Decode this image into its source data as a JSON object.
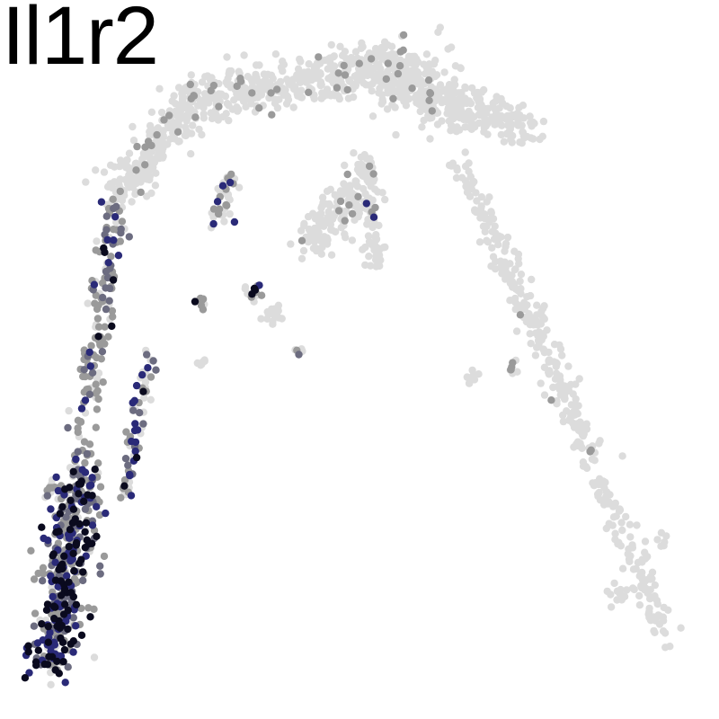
{
  "chart_data": {
    "type": "scatter",
    "title": "Il1r2",
    "xlabel": "",
    "ylabel": "",
    "grid": false,
    "legend": "none",
    "colors": {
      "none": "#dcdcdc",
      "low": "#9a9a9a",
      "mid": "#6c6c80",
      "high": "#2a2a78",
      "max": "#0a0a1e"
    },
    "segments": [
      {
        "name": "left-arm",
        "from": [
          -0.92,
          -0.92
        ],
        "to": [
          -0.72,
          0.5
        ],
        "n": 260,
        "spread": 0.018,
        "level_dist": [
          0.2,
          0.5,
          0.15,
          0.1,
          0.05
        ]
      },
      {
        "name": "left-base",
        "from": [
          -0.92,
          -0.92
        ],
        "to": [
          -0.82,
          -0.35
        ],
        "n": 320,
        "spread": 0.04,
        "level_dist": [
          0.05,
          0.3,
          0.2,
          0.25,
          0.2
        ]
      },
      {
        "name": "left-arm-upper",
        "from": [
          -0.72,
          0.5
        ],
        "to": [
          -0.5,
          0.78
        ],
        "n": 220,
        "spread": 0.03,
        "level_dist": [
          0.92,
          0.08,
          0,
          0,
          0
        ]
      },
      {
        "name": "top-ridge",
        "from": [
          -0.5,
          0.78
        ],
        "to": [
          0.05,
          0.88
        ],
        "n": 380,
        "spread": 0.035,
        "level_dist": [
          0.97,
          0.03,
          0,
          0,
          0
        ]
      },
      {
        "name": "top-peak",
        "from": [
          0.05,
          0.88
        ],
        "to": [
          0.25,
          0.78
        ],
        "n": 260,
        "spread": 0.05,
        "level_dist": [
          0.95,
          0.05,
          0,
          0,
          0
        ]
      },
      {
        "name": "right-branch",
        "from": [
          0.25,
          0.78
        ],
        "to": [
          0.5,
          0.7
        ],
        "n": 180,
        "spread": 0.03,
        "level_dist": [
          1,
          0,
          0,
          0,
          0
        ]
      },
      {
        "name": "right-arm",
        "from": [
          0.3,
          0.6
        ],
        "to": [
          0.92,
          -0.82
        ],
        "n": 380,
        "spread": 0.022,
        "level_dist": [
          0.98,
          0.02,
          0,
          0,
          0
        ]
      },
      {
        "name": "mid-branch",
        "from": [
          0.02,
          0.55
        ],
        "to": [
          -0.15,
          0.35
        ],
        "n": 140,
        "spread": 0.03,
        "level_dist": [
          0.95,
          0.05,
          0,
          0,
          0
        ]
      },
      {
        "name": "mid-stalk",
        "from": [
          0.02,
          0.6
        ],
        "to": [
          0.05,
          0.28
        ],
        "n": 70,
        "spread": 0.015,
        "level_dist": [
          0.9,
          0.05,
          0,
          0.05,
          0
        ]
      },
      {
        "name": "inner-stem",
        "from": [
          -0.38,
          0.55
        ],
        "to": [
          -0.42,
          0.42
        ],
        "n": 40,
        "spread": 0.015,
        "level_dist": [
          0.7,
          0.2,
          0,
          0.1,
          0
        ]
      },
      {
        "name": "left-inner-tail",
        "from": [
          -0.62,
          0.02
        ],
        "to": [
          -0.7,
          -0.4
        ],
        "n": 70,
        "spread": 0.012,
        "level_dist": [
          0.3,
          0.2,
          0.2,
          0.2,
          0.1
        ]
      }
    ],
    "clusters": [
      {
        "x": -0.32,
        "y": 0.2,
        "n": 14,
        "spread": 0.015,
        "level_dist": [
          0.6,
          0.2,
          0,
          0.1,
          0.1
        ]
      },
      {
        "x": -0.26,
        "y": 0.14,
        "n": 16,
        "spread": 0.015,
        "level_dist": [
          0.95,
          0.05,
          0,
          0,
          0
        ]
      },
      {
        "x": -0.47,
        "y": 0.18,
        "n": 8,
        "spread": 0.01,
        "level_dist": [
          0.5,
          0.2,
          0,
          0,
          0.3
        ]
      },
      {
        "x": -0.18,
        "y": 0.03,
        "n": 6,
        "spread": 0.008,
        "level_dist": [
          0.3,
          0.3,
          0.4,
          0,
          0
        ]
      },
      {
        "x": -0.47,
        "y": 0.0,
        "n": 6,
        "spread": 0.008,
        "level_dist": [
          1,
          0,
          0,
          0,
          0
        ]
      },
      {
        "x": 0.34,
        "y": -0.05,
        "n": 8,
        "spread": 0.01,
        "level_dist": [
          1,
          0,
          0,
          0,
          0
        ]
      },
      {
        "x": 0.46,
        "y": -0.02,
        "n": 8,
        "spread": 0.01,
        "level_dist": [
          0.6,
          0.4,
          0,
          0,
          0
        ]
      },
      {
        "x": 0.76,
        "y": -0.7,
        "n": 12,
        "spread": 0.015,
        "level_dist": [
          1,
          0,
          0,
          0,
          0
        ]
      },
      {
        "x": 0.9,
        "y": -0.53,
        "n": 6,
        "spread": 0.01,
        "level_dist": [
          1,
          0,
          0,
          0,
          0
        ]
      },
      {
        "x": -0.92,
        "y": -0.38,
        "n": 8,
        "spread": 0.012,
        "level_dist": [
          0.8,
          0.2,
          0,
          0,
          0
        ]
      }
    ],
    "xlim": [
      -1,
      1
    ],
    "ylim": [
      -1,
      1
    ]
  }
}
